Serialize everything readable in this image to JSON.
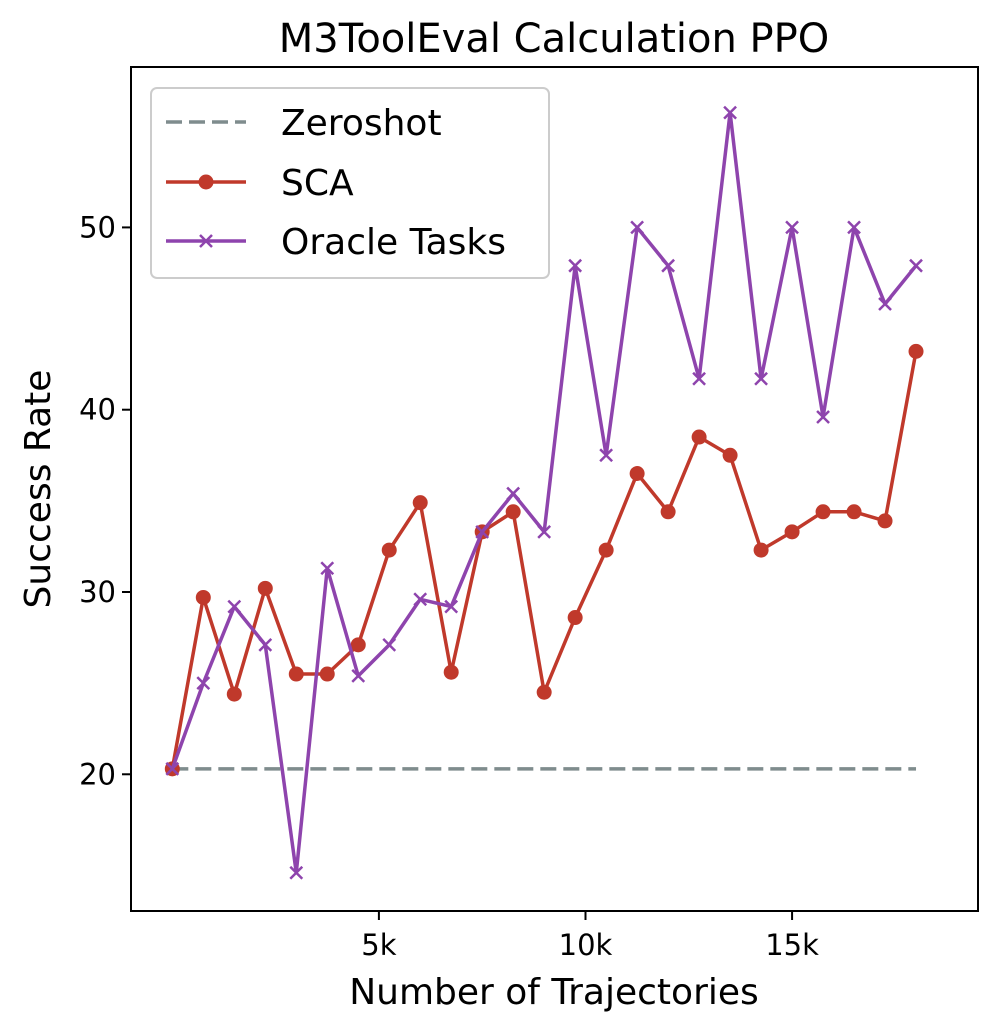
{
  "chart_data": {
    "type": "line",
    "title": "M3ToolEval Calculation PPO",
    "xlabel": "Number of Trajectories",
    "ylabel": "Success Rate",
    "xlim": [
      -1000,
      19500
    ],
    "ylim": [
      12.5,
      58.8
    ],
    "x_ticks": [
      5000,
      10000,
      15000
    ],
    "x_tick_labels": [
      "5k",
      "10k",
      "15k"
    ],
    "y_ticks": [
      20,
      30,
      40,
      50
    ],
    "y_tick_labels": [
      "20",
      "30",
      "40",
      "50"
    ],
    "legend_position": "upper-left",
    "x": [
      0,
      750,
      1500,
      2250,
      3000,
      3750,
      4500,
      5250,
      6000,
      6750,
      7500,
      8250,
      9000,
      9750,
      10500,
      11250,
      12000,
      12750,
      13500,
      14250,
      15000,
      15750,
      16500,
      17250,
      18000
    ],
    "series": [
      {
        "name": "Zeroshot",
        "style": "dashed",
        "marker": "none",
        "color": "#7f8c8d",
        "x": [
          0,
          18000
        ],
        "values": [
          20.3,
          20.3
        ]
      },
      {
        "name": "SCA",
        "style": "solid",
        "marker": "circle",
        "color": "#c0392b",
        "values": [
          20.3,
          29.7,
          24.4,
          30.2,
          25.5,
          25.5,
          27.1,
          32.3,
          34.9,
          25.6,
          33.3,
          34.4,
          24.5,
          28.6,
          32.3,
          36.5,
          34.4,
          38.5,
          37.5,
          32.3,
          33.3,
          34.4,
          34.4,
          33.9,
          43.2
        ]
      },
      {
        "name": "Oracle Tasks",
        "style": "solid",
        "marker": "x",
        "color": "#8e44ad",
        "values": [
          20.3,
          25.0,
          29.2,
          27.1,
          14.6,
          31.3,
          25.4,
          27.1,
          29.6,
          29.2,
          33.3,
          35.4,
          33.3,
          47.9,
          37.5,
          50.0,
          47.9,
          41.7,
          56.3,
          41.7,
          50.0,
          39.6,
          50.0,
          45.8,
          47.9
        ]
      }
    ]
  }
}
